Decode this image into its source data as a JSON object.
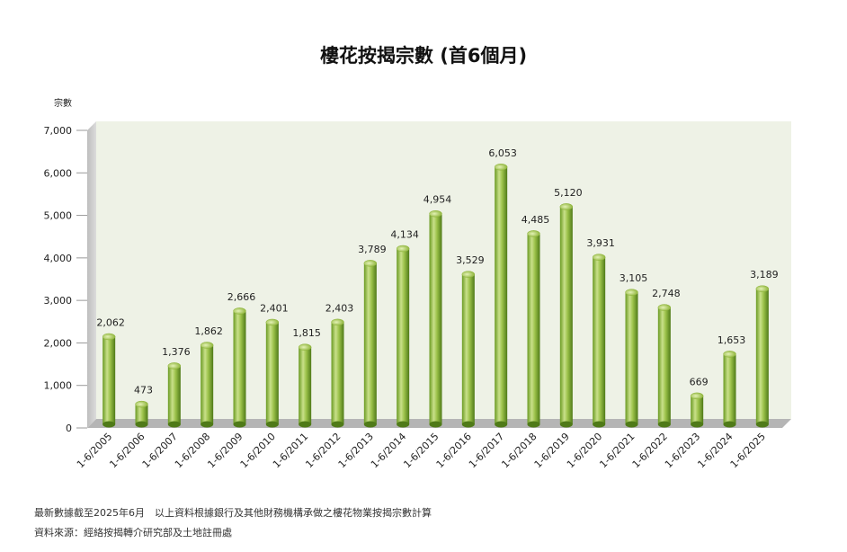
{
  "chart_data": {
    "type": "bar",
    "title": "樓花按揭宗數 (首6個月)",
    "ylabel": "宗數",
    "xlabel": "",
    "categories": [
      "1-6/2005",
      "1-6/2006",
      "1-6/2007",
      "1-6/2008",
      "1-6/2009",
      "1-6/2010",
      "1-6/2011",
      "1-6/2012",
      "1-6/2013",
      "1-6/2014",
      "1-6/2015",
      "1-6/2016",
      "1-6/2017",
      "1-6/2018",
      "1-6/2019",
      "1-6/2020",
      "1-6/2021",
      "1-6/2022",
      "1-6/2023",
      "1-6/2024",
      "1-6/2025"
    ],
    "values": [
      2062,
      473,
      1376,
      1862,
      2666,
      2401,
      1815,
      2403,
      3789,
      4134,
      4954,
      3529,
      6053,
      4485,
      5120,
      3931,
      3105,
      2748,
      669,
      1653,
      3189
    ],
    "value_labels": [
      "2,062",
      "473",
      "1,376",
      "1,862",
      "2,666",
      "2,401",
      "1,815",
      "2,403",
      "3,789",
      "4,134",
      "4,954",
      "3,529",
      "6,053",
      "4,485",
      "5,120",
      "3,931",
      "3,105",
      "2,748",
      "669",
      "1,653",
      "3,189"
    ],
    "ylim": [
      0,
      7000
    ],
    "yticks": [
      0,
      1000,
      2000,
      3000,
      4000,
      5000,
      6000,
      7000
    ],
    "ytick_labels": [
      "0",
      "1,000",
      "2,000",
      "3,000",
      "4,000",
      "5,000",
      "6,000",
      "7,000"
    ],
    "grid": false,
    "legend": "none",
    "colors": {
      "bar_light": "#c9e08a",
      "bar_mid": "#8fb53c",
      "bar_dark": "#4f7a18",
      "plot_bg": "#eef2e6",
      "wall": "#c8c8c8",
      "floor": "#b5b5b5"
    }
  },
  "footnote": "最新數據截至2025年6月　以上資料根據銀行及其他財務機構承做之樓花物業按揭宗數計算",
  "source": "資料來源：經絡按揭轉介研究部及土地註冊處"
}
